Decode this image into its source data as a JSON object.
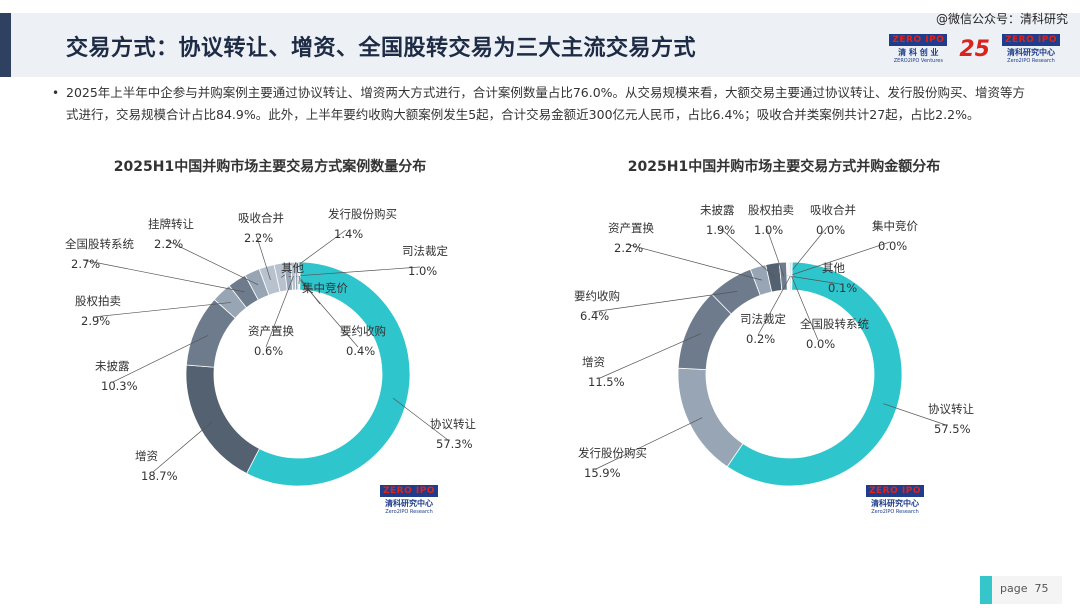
{
  "header": {
    "title": "交易方式：协议转让、增资、全国股转交易为三大主流交易方式",
    "watermark": "@微信公众号：清科研究"
  },
  "logos": {
    "zero2ipo_ventures": {
      "badge_a": "ZERO",
      "badge_b": "IPO",
      "cn": "清 科 创 业",
      "en": "ZERO2IPO Ventures"
    },
    "anniversary": "25",
    "research": {
      "badge_a": "ZERO",
      "badge_b": "IPO",
      "cn": "清科研究中心",
      "en": "Zero2IPO Research"
    }
  },
  "bullet": {
    "marker": "•",
    "text": "2025年上半年中企参与并购案例主要通过协议转让、增资两大方式进行，合计案例数量占比76.0%。从交易规模来看，大额交易主要通过协议转让、发行股份购买、增资等方式进行，交易规模合计占比84.9%。此外，上半年要约收购大额案例发生5起，合计交易金额近300亿元人民币，占比6.4%；吸收合并类案例共计27起，占比2.2%。"
  },
  "colors": {
    "teal": "#2ec5cc",
    "dark": "#536170",
    "mid": "#6d7b8d",
    "light": "#98a5b5",
    "lighter": "#b8c2cf",
    "title": "#1d2b45"
  },
  "chart_data": [
    {
      "type": "pie",
      "donut": true,
      "title": "2025H1中国并购市场主要交易方式案例数量分布",
      "slices": [
        {
          "label": "协议转让",
          "value": 57.3,
          "display": "57.3%"
        },
        {
          "label": "增资",
          "value": 18.7,
          "display": "18.7%"
        },
        {
          "label": "未披露",
          "value": 10.3,
          "display": "10.3%"
        },
        {
          "label": "股权拍卖",
          "value": 2.9,
          "display": "2.9%"
        },
        {
          "label": "全国股转系统",
          "value": 2.7,
          "display": "2.7%"
        },
        {
          "label": "挂牌转让",
          "value": 2.2,
          "display": "2.2%"
        },
        {
          "label": "吸收合并",
          "value": 2.2,
          "display": "2.2%"
        },
        {
          "label": "发行股份购买",
          "value": 1.4,
          "display": "1.4%"
        },
        {
          "label": "司法裁定",
          "value": 1.0,
          "display": "1.0%"
        },
        {
          "label": "资产置换",
          "value": 0.6,
          "display": "0.6%"
        },
        {
          "label": "要约收购",
          "value": 0.4,
          "display": "0.4%"
        },
        {
          "label": "集中竞价",
          "value": 0.2,
          "display": ""
        },
        {
          "label": "其他",
          "value": 0.1,
          "display": ""
        }
      ]
    },
    {
      "type": "pie",
      "donut": true,
      "title": "2025H1中国并购市场主要交易方式并购金额分布",
      "slices": [
        {
          "label": "协议转让",
          "value": 57.5,
          "display": "57.5%"
        },
        {
          "label": "发行股份购买",
          "value": 15.9,
          "display": "15.9%"
        },
        {
          "label": "增资",
          "value": 11.5,
          "display": "11.5%"
        },
        {
          "label": "要约收购",
          "value": 6.4,
          "display": "6.4%"
        },
        {
          "label": "资产置换",
          "value": 2.2,
          "display": "2.2%"
        },
        {
          "label": "未披露",
          "value": 1.9,
          "display": "1.9%"
        },
        {
          "label": "股权拍卖",
          "value": 1.0,
          "display": "1.0%"
        },
        {
          "label": "吸收合并",
          "value": 0.0,
          "display": "0.0%"
        },
        {
          "label": "集中竞价",
          "value": 0.0,
          "display": "0.0%"
        },
        {
          "label": "其他",
          "value": 0.1,
          "display": "0.1%"
        },
        {
          "label": "司法裁定",
          "value": 0.2,
          "display": "0.2%"
        },
        {
          "label": "全国股转系统",
          "value": 0.0,
          "display": "0.0%"
        }
      ]
    }
  ],
  "footer": {
    "page_label": "page",
    "page_number": "75"
  }
}
